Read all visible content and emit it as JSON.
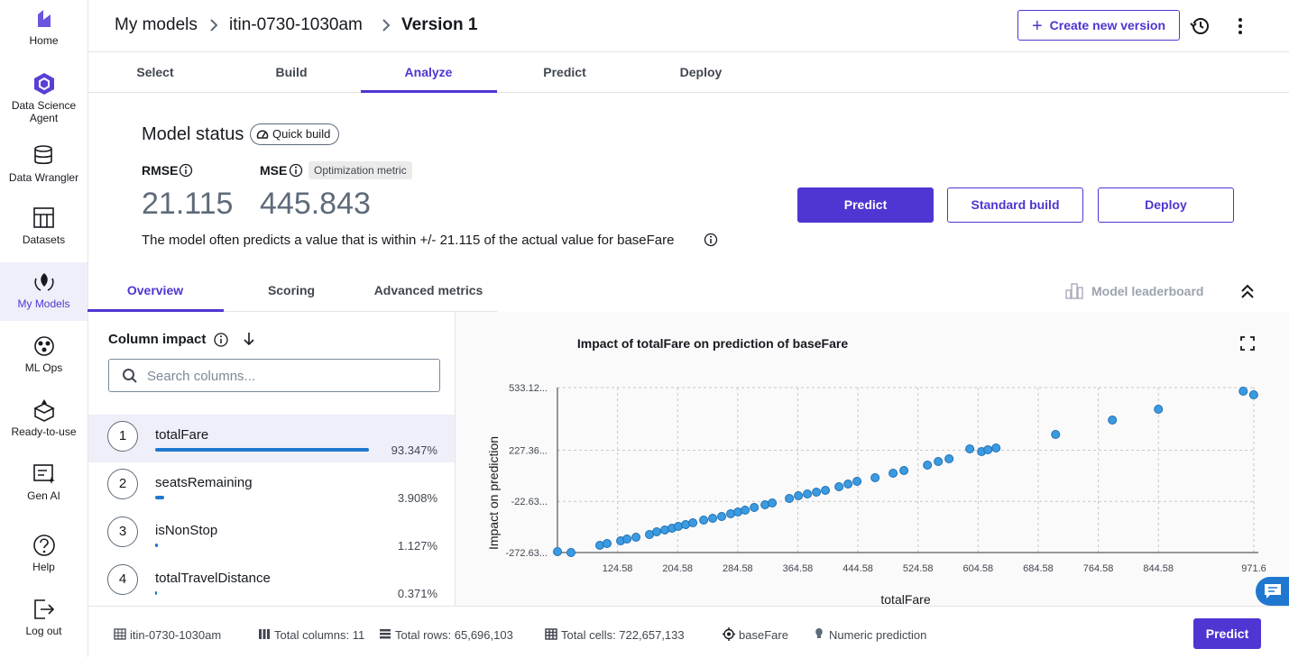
{
  "sidebar": {
    "items": [
      "Home",
      "Data Science Agent",
      "Data Wrangler",
      "Datasets",
      "My Models",
      "ML Ops",
      "Ready-to-use",
      "Gen AI",
      "Help",
      "Log out"
    ],
    "selected": "My Models"
  },
  "breadcrumb": [
    "My models",
    "itin-0730-1030am",
    "Version 1"
  ],
  "header_button": "Create new version",
  "tabs": [
    "Select",
    "Build",
    "Analyze",
    "Predict",
    "Deploy"
  ],
  "active_tab": "Analyze",
  "model_status": {
    "title": "Model status",
    "badge": "Quick build",
    "metrics": [
      {
        "name": "RMSE",
        "value": "21.115"
      },
      {
        "name": "MSE",
        "value": "445.843",
        "tag": "Optimization metric"
      }
    ],
    "description": "The model often predicts a value that is within +/- 21.115 of the actual value for baseFare"
  },
  "actions": [
    "Predict",
    "Standard build",
    "Deploy"
  ],
  "subtabs": [
    "Overview",
    "Scoring",
    "Advanced metrics"
  ],
  "leaderboard": "Model leaderboard",
  "column_impact": {
    "title": "Column impact",
    "search_placeholder": "Search columns...",
    "rows": [
      {
        "rank": 1,
        "name": "totalFare",
        "impact": "93.347%"
      },
      {
        "rank": 2,
        "name": "seatsRemaining",
        "impact": "3.908%"
      },
      {
        "rank": 3,
        "name": "isNonStop",
        "impact": "1.127%"
      },
      {
        "rank": 4,
        "name": "totalTravelDistance",
        "impact": "0.371%"
      }
    ]
  },
  "footer": {
    "items": [
      "itin-0730-1030am",
      "Total columns: 11",
      "Total rows: 65,696,103",
      "Total cells: 722,657,133",
      "baseFare",
      "Numeric prediction"
    ],
    "button": "Predict"
  },
  "chart_data": {
    "type": "scatter",
    "title": "Impact of totalFare on prediction of baseFare",
    "x_label": "totalFare",
    "y_label": "Impact on prediction",
    "color": "#3b9be0",
    "grid": true,
    "xlim": [
      44.58,
      971.6
    ],
    "xticks": [
      124.58,
      204.58,
      284.58,
      364.58,
      444.58,
      524.58,
      604.58,
      684.58,
      764.58,
      844.58,
      971.6
    ],
    "ylim": [
      -272.63,
      533.12
    ],
    "yticks": [
      {
        "value": -272.63,
        "label": "-272.63..."
      },
      {
        "value": -22.63,
        "label": "-22.63..."
      },
      {
        "value": 227.36,
        "label": "227.36..."
      },
      {
        "value": 533.12,
        "label": "533.12..."
      }
    ],
    "x": [
      44.6,
      62.6,
      101.0,
      110.6,
      128.7,
      137.1,
      149.1,
      167.1,
      176.7,
      187.5,
      197.1,
      205.5,
      215.2,
      224.8,
      239.2,
      251.2,
      263.2,
      275.2,
      284.8,
      294.4,
      306.5,
      320.9,
      330.5,
      353.3,
      365.3,
      377.3,
      389.3,
      401.3,
      419.4,
      431.4,
      443.4,
      467.4,
      491.4,
      505.8,
      537.1,
      551.5,
      565.9,
      593.5,
      609.2,
      617.6,
      628.4,
      707.7,
      783.3,
      844.6,
      957.5,
      971.4
    ],
    "values": [
      -268.2,
      -272.6,
      -237.4,
      -228.6,
      -215.4,
      -206.6,
      -197.8,
      -184.6,
      -171.4,
      -162.6,
      -153.8,
      -144.9,
      -136.1,
      -127.3,
      -114.1,
      -105.3,
      -96.5,
      -83.3,
      -74.5,
      -65.7,
      -52.5,
      -39.3,
      -30.5,
      -8.4,
      4.8,
      13.6,
      22.4,
      31.2,
      48.8,
      62.0,
      75.2,
      92.8,
      114.8,
      128.1,
      154.5,
      172.1,
      185.3,
      233.7,
      220.5,
      229.3,
      238.1,
      304.2,
      374.6,
      427.4,
      515.5,
      497.9
    ]
  }
}
